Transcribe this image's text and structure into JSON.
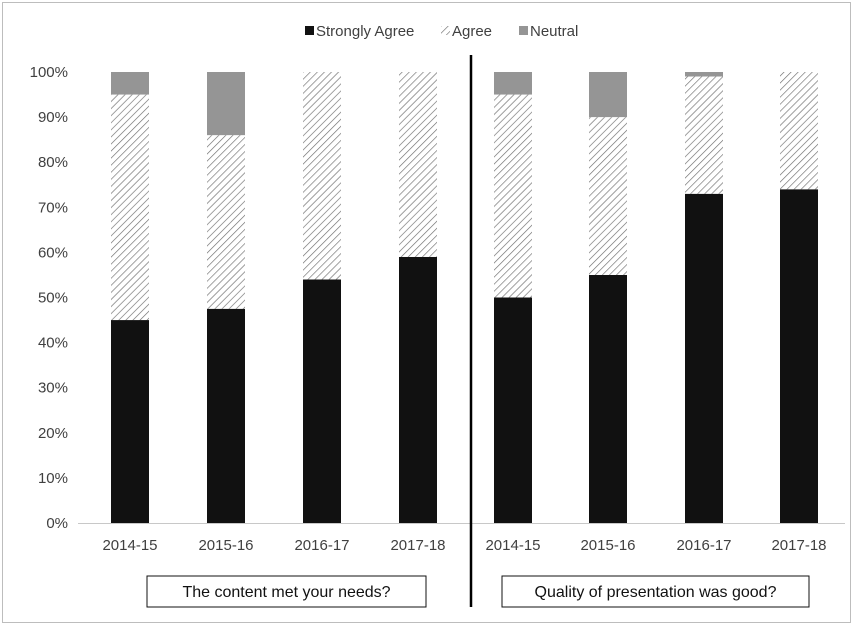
{
  "chart_data": {
    "type": "bar",
    "stacked": true,
    "percent_stacked": true,
    "y_tick_labels": [
      "0%",
      "10%",
      "20%",
      "30%",
      "40%",
      "50%",
      "60%",
      "70%",
      "80%",
      "90%",
      "100%"
    ],
    "ylim": [
      0,
      100
    ],
    "grid": false,
    "legend": {
      "placement": "top-center",
      "entries": [
        {
          "name": "Strongly Agree",
          "style": "solid",
          "color": "#111111"
        },
        {
          "name": "Agree",
          "style": "hatched",
          "color": "#6e6e6e"
        },
        {
          "name": "Neutral",
          "style": "solid",
          "color": "#959595"
        }
      ]
    },
    "panels": [
      {
        "caption": "The content met your needs?",
        "categories": [
          "2014-15",
          "2015-16",
          "2016-17",
          "2017-18"
        ],
        "series": [
          {
            "name": "Strongly Agree",
            "values": [
              45,
              47.5,
              54,
              59
            ]
          },
          {
            "name": "Agree",
            "values": [
              50,
              38.5,
              46,
              41
            ]
          },
          {
            "name": "Neutral",
            "values": [
              5,
              14,
              0,
              0
            ]
          }
        ]
      },
      {
        "caption": "Quality of presentation was good?",
        "categories": [
          "2014-15",
          "2015-16",
          "2016-17",
          "2017-18"
        ],
        "series": [
          {
            "name": "Strongly Agree",
            "values": [
              50,
              55,
              73,
              74
            ]
          },
          {
            "name": "Agree",
            "values": [
              45,
              35,
              26,
              26
            ]
          },
          {
            "name": "Neutral",
            "values": [
              5,
              10,
              1,
              0
            ]
          }
        ]
      }
    ]
  }
}
